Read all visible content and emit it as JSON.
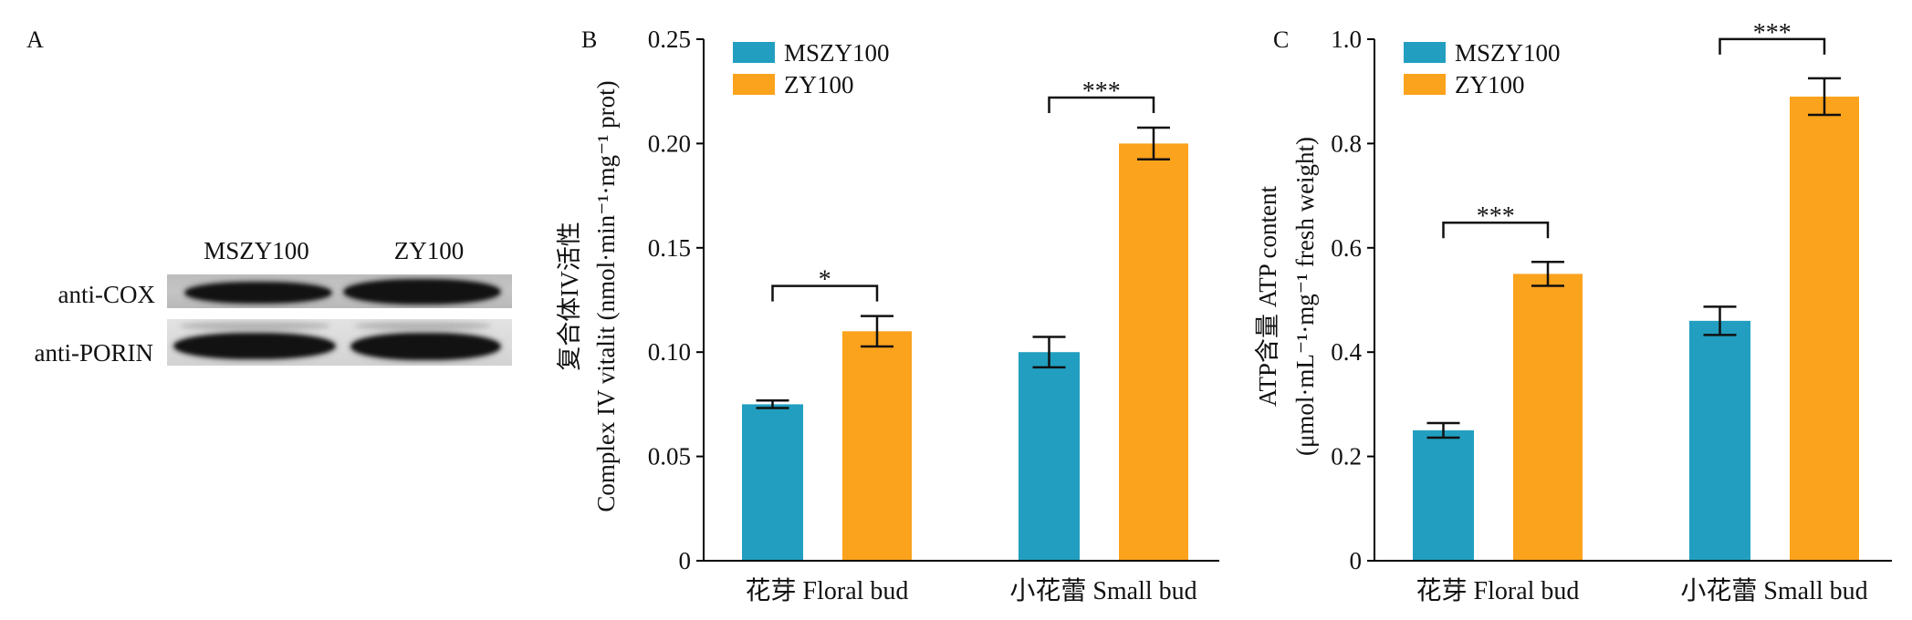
{
  "figure": {
    "panel_a": {
      "panel_label": "A",
      "columns": [
        "MSZY100",
        "ZY100"
      ],
      "rows": [
        "anti-COX",
        "anti-PORIN"
      ]
    }
  },
  "chart_data": [
    {
      "panel_label": "B",
      "type": "bar",
      "categories": [
        "花芽 Floral bud",
        "小花蕾 Small bud"
      ],
      "series": [
        {
          "name": "MSZY100",
          "values": [
            0.075,
            0.1
          ],
          "errors": [
            0.0018,
            0.0073
          ],
          "color": "#229fc0"
        },
        {
          "name": "ZY100",
          "values": [
            0.11,
            0.2
          ],
          "errors": [
            0.0073,
            0.0076
          ],
          "color": "#fba31c"
        }
      ],
      "ylabel": [
        "复合体IV活性",
        "Complex IV vitalit (nmol·min⁻¹·mg⁻¹ prot)"
      ],
      "ylim": [
        0,
        0.25
      ],
      "yticks": [
        0,
        0.05,
        0.1,
        0.15,
        0.2,
        0.25
      ],
      "ytick_labels": [
        "0",
        "0.05",
        "0.10",
        "0.15",
        "0.20",
        "0.25"
      ],
      "significance": [
        "*",
        "***"
      ],
      "legend_position": "top-left",
      "grid": false
    },
    {
      "panel_label": "C",
      "type": "bar",
      "categories": [
        "花芽 Floral bud",
        "小花蕾 Small bud"
      ],
      "series": [
        {
          "name": "MSZY100",
          "values": [
            0.25,
            0.46
          ],
          "errors": [
            0.014,
            0.027
          ],
          "color": "#229fc0"
        },
        {
          "name": "ZY100",
          "values": [
            0.55,
            0.89
          ],
          "errors": [
            0.023,
            0.035
          ],
          "color": "#fba31c"
        }
      ],
      "ylabel": [
        "ATP含量 ATP content",
        "(μmol·mL⁻¹·mg⁻¹ fresh weight)"
      ],
      "ylim": [
        0,
        1.0
      ],
      "yticks": [
        0,
        0.2,
        0.4,
        0.6,
        0.8,
        1.0
      ],
      "ytick_labels": [
        "0",
        "0.2",
        "0.4",
        "0.6",
        "0.8",
        "1.0"
      ],
      "significance": [
        "***",
        "***"
      ],
      "legend_position": "top-left",
      "grid": false
    }
  ]
}
